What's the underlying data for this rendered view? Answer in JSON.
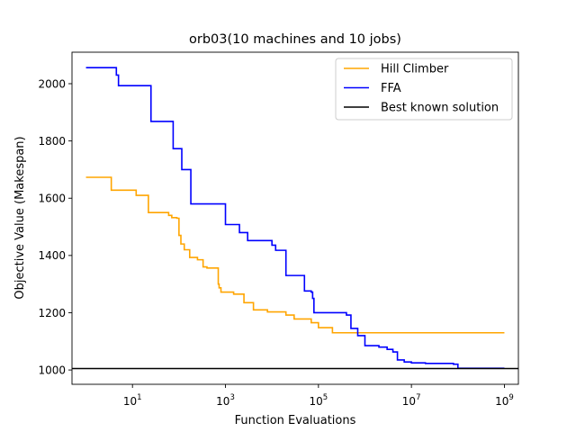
{
  "chart_data": {
    "type": "line",
    "title": "orb03(10 machines and 10 jobs)",
    "xlabel": "Function Evaluations",
    "ylabel": "Objective Value (Makespan)",
    "xscale": "log",
    "xlim": [
      0.5,
      2000000000
    ],
    "ylim": [
      950,
      2110
    ],
    "x_ticks": [
      {
        "value": 10,
        "base": "10",
        "exp": "1"
      },
      {
        "value": 1000,
        "base": "10",
        "exp": "3"
      },
      {
        "value": 100000,
        "base": "10",
        "exp": "5"
      },
      {
        "value": 10000000,
        "base": "10",
        "exp": "7"
      },
      {
        "value": 1000000000,
        "base": "10",
        "exp": "9"
      }
    ],
    "y_ticks": [
      1000,
      1200,
      1400,
      1600,
      1800,
      2000
    ],
    "grid": false,
    "legend_position": "top-right",
    "series": [
      {
        "name": "Hill Climber",
        "color": "#ffa500",
        "step": true,
        "x": [
          1,
          2.2,
          3.5,
          12,
          20,
          22,
          60,
          70,
          90,
          100,
          110,
          130,
          170,
          250,
          330,
          400,
          700,
          730,
          800,
          1500,
          2500,
          4000,
          8000,
          20000,
          30000,
          70000,
          100000,
          200000,
          1000000000
        ],
        "y": [
          1673,
          1673,
          1628,
          1610,
          1610,
          1550,
          1540,
          1532,
          1530,
          1470,
          1440,
          1420,
          1393,
          1385,
          1360,
          1356,
          1300,
          1287,
          1272,
          1265,
          1235,
          1210,
          1203,
          1192,
          1178,
          1165,
          1148,
          1130,
          1130
        ]
      },
      {
        "name": "FFA",
        "color": "#0000ff",
        "step": true,
        "x": [
          1,
          4,
          4.5,
          5,
          22,
          25,
          70,
          75,
          100,
          115,
          180,
          1000,
          2000,
          3000,
          5000,
          10000,
          12000,
          20000,
          25000,
          50000,
          70000,
          75000,
          80000,
          400000,
          500000,
          700000,
          1000000,
          2000000,
          3000000,
          4000000,
          5000000,
          7000000,
          10000000,
          20000000,
          80000000,
          100000000,
          1000000000
        ],
        "y": [
          2056,
          2056,
          2030,
          1993,
          1993,
          1868,
          1868,
          1773,
          1773,
          1700,
          1580,
          1508,
          1480,
          1452,
          1452,
          1436,
          1418,
          1330,
          1330,
          1276,
          1272,
          1250,
          1200,
          1192,
          1145,
          1120,
          1085,
          1080,
          1072,
          1063,
          1035,
          1028,
          1025,
          1023,
          1020,
          1006,
          1006
        ]
      },
      {
        "name": "Best known solution",
        "color": "#000000",
        "step": false,
        "x": [
          0.5,
          2000000000
        ],
        "y": [
          1005,
          1005
        ]
      }
    ]
  }
}
